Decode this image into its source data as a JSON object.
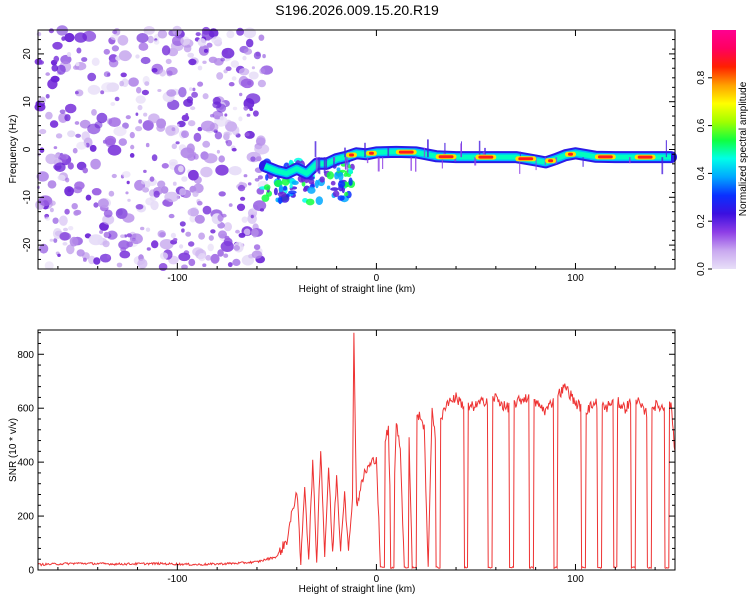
{
  "title": "S196.2026.009.15.20.R19",
  "chart_data": [
    {
      "type": "heatmap",
      "name": "spectrogram",
      "xlabel": "Height of straight line (km)",
      "ylabel": "Frequency (Hz)",
      "xlim": [
        -170,
        150
      ],
      "ylim": [
        -25,
        25
      ],
      "x_ticks": [
        "-100",
        "0",
        "100"
      ],
      "x_tick_values": [
        -100,
        0,
        100
      ],
      "y_ticks": [
        "20",
        "10",
        "0",
        "-10",
        "-20"
      ],
      "y_tick_values": [
        20,
        10,
        0,
        -10,
        -20
      ],
      "noise_region_x": [
        -170,
        -55
      ],
      "signal_region_x": [
        -57,
        148
      ],
      "signal_track": [
        {
          "x": -56,
          "f": -3.5
        },
        {
          "x": -50,
          "f": -4.5
        },
        {
          "x": -45,
          "f": -5
        },
        {
          "x": -40,
          "f": -4
        },
        {
          "x": -35,
          "f": -5
        },
        {
          "x": -30,
          "f": -3
        },
        {
          "x": -25,
          "f": -3
        },
        {
          "x": -20,
          "f": -2
        },
        {
          "x": -15,
          "f": -1.5
        },
        {
          "x": -10,
          "f": -0.8
        },
        {
          "x": -5,
          "f": -1
        },
        {
          "x": 0,
          "f": -0.6
        },
        {
          "x": 10,
          "f": -0.5
        },
        {
          "x": 20,
          "f": -0.6
        },
        {
          "x": 30,
          "f": -1.4
        },
        {
          "x": 40,
          "f": -1.6
        },
        {
          "x": 50,
          "f": -1.6
        },
        {
          "x": 60,
          "f": -1.6
        },
        {
          "x": 70,
          "f": -1.6
        },
        {
          "x": 80,
          "f": -2.3
        },
        {
          "x": 85,
          "f": -2.7
        },
        {
          "x": 90,
          "f": -2
        },
        {
          "x": 95,
          "f": -1.2
        },
        {
          "x": 100,
          "f": -0.8
        },
        {
          "x": 110,
          "f": -1.5
        },
        {
          "x": 120,
          "f": -1.6
        },
        {
          "x": 130,
          "f": -1.6
        },
        {
          "x": 140,
          "f": -1.6
        },
        {
          "x": 148,
          "f": -1.6
        }
      ],
      "colorbar": {
        "label": "Normalized spectral amplitude",
        "range": [
          0,
          1
        ],
        "ticks": [
          "0.0",
          "0.2",
          "0.4",
          "0.6",
          "0.8"
        ],
        "tick_values": [
          0,
          0.2,
          0.4,
          0.6,
          0.8
        ],
        "colors": [
          "#e8e0f8",
          "#c9a8f0",
          "#8e3ee6",
          "#3c10e0",
          "#0a30ff",
          "#00a8ff",
          "#00ffe8",
          "#10ff40",
          "#a0ff00",
          "#ffff00",
          "#ffa000",
          "#ff2000",
          "#ff0060",
          "#ff0090"
        ]
      }
    },
    {
      "type": "line",
      "name": "snr",
      "xlabel": "Height of straight line (km)",
      "ylabel": "SNR (10 * v/v)",
      "xlim": [
        -170,
        150
      ],
      "ylim": [
        0,
        890
      ],
      "x_ticks": [
        "-100",
        "0",
        "100"
      ],
      "x_tick_values": [
        -100,
        0,
        100
      ],
      "y_ticks": [
        "0",
        "200",
        "400",
        "600",
        "800"
      ],
      "y_tick_values": [
        0,
        200,
        400,
        600,
        800
      ],
      "series": [
        {
          "name": "SNR",
          "color": "#ee3333",
          "x": [
            -170,
            -150,
            -130,
            -110,
            -90,
            -70,
            -60,
            -50,
            -45,
            -40,
            -38,
            -36,
            -34,
            -32,
            -30,
            -28,
            -26,
            -24,
            -22,
            -20,
            -18,
            -16,
            -14,
            -12,
            -11.3,
            -10,
            -8,
            -6,
            -4,
            -2,
            0,
            2,
            4,
            6,
            8,
            10,
            12,
            14,
            16,
            18,
            20,
            22,
            24,
            26,
            28,
            30,
            35,
            40,
            45,
            50,
            55,
            60,
            65,
            70,
            75,
            80,
            85,
            90,
            95,
            100,
            105,
            110,
            115,
            120,
            125,
            130,
            135,
            140,
            145,
            148,
            150
          ],
          "y": [
            20,
            25,
            22,
            24,
            20,
            25,
            30,
            50,
            110,
            300,
            20,
            320,
            40,
            400,
            30,
            460,
            50,
            380,
            60,
            350,
            80,
            300,
            60,
            280,
            880,
            240,
            300,
            360,
            380,
            400,
            420,
            20,
            480,
            520,
            10,
            560,
            450,
            10,
            600,
            20,
            560,
            580,
            520,
            10,
            600,
            480,
            620,
            640,
            600,
            610,
            630,
            640,
            600,
            620,
            640,
            620,
            590,
            640,
            680,
            620,
            590,
            620,
            600,
            630,
            600,
            640,
            580,
            610,
            600,
            620,
            440
          ],
          "dropouts_x": [
            3,
            8,
            15,
            19,
            31,
            45,
            57,
            68,
            78,
            90,
            104,
            112,
            120,
            129,
            137,
            146
          ]
        }
      ]
    }
  ]
}
